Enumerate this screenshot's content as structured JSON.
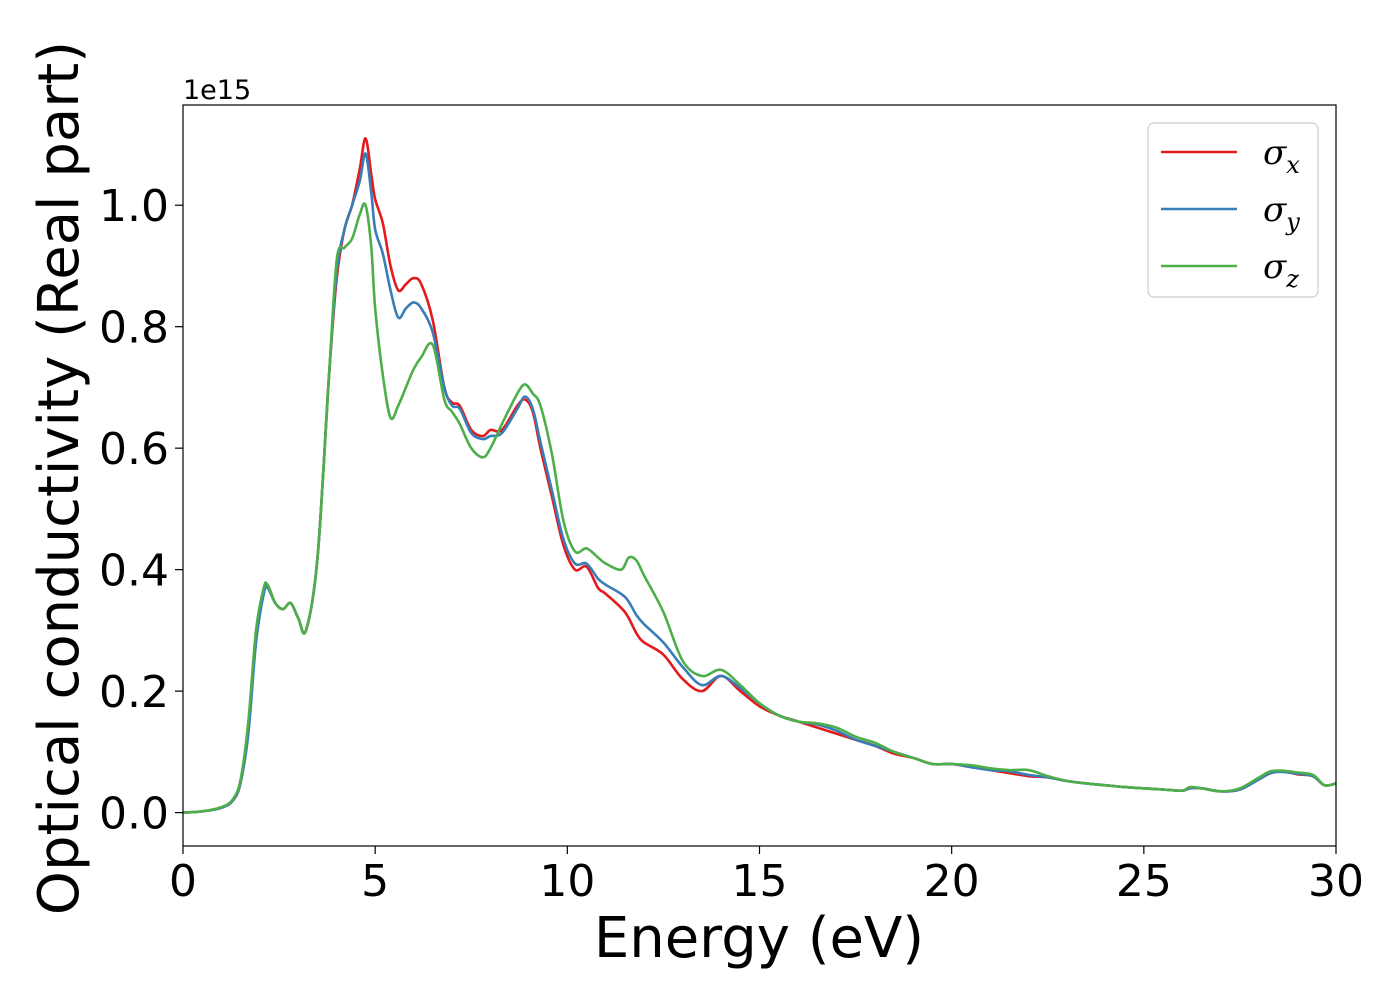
{
  "chart_data": {
    "type": "line",
    "title": "",
    "xlabel": "Energy (eV)",
    "ylabel": "Optical conductivity (Real part)",
    "y_offset_text": "1e15",
    "xlim": [
      0,
      30
    ],
    "ylim": [
      -0.055,
      1.165
    ],
    "xticks": [
      0,
      5,
      10,
      15,
      20,
      25,
      30
    ],
    "xtick_labels": [
      "0",
      "5",
      "10",
      "15",
      "20",
      "25",
      "30"
    ],
    "yticks": [
      0.0,
      0.2,
      0.4,
      0.6,
      0.8,
      1.0
    ],
    "ytick_labels": [
      "0.0",
      "0.2",
      "0.4",
      "0.6",
      "0.8",
      "1.0"
    ],
    "grid": false,
    "legend_position": "top-right",
    "series": [
      {
        "name": "σx",
        "legend_base": "σ",
        "legend_sub": "x",
        "color": "#e41a1c",
        "x": [
          0,
          0.5,
          1,
          1.3,
          1.5,
          1.7,
          1.9,
          2.1,
          2.2,
          2.4,
          2.6,
          2.8,
          3.0,
          3.2,
          3.5,
          3.8,
          4.0,
          4.2,
          4.4,
          4.6,
          4.75,
          4.9,
          5.0,
          5.2,
          5.4,
          5.6,
          5.8,
          6.0,
          6.2,
          6.5,
          6.8,
          7.0,
          7.2,
          7.5,
          7.8,
          8.0,
          8.3,
          8.7,
          8.9,
          9.1,
          9.3,
          9.6,
          9.9,
          10.2,
          10.5,
          10.8,
          11.0,
          11.5,
          11.8,
          12.0,
          12.5,
          13.0,
          13.5,
          14.0,
          14.5,
          15.0,
          15.5,
          16,
          16.5,
          17,
          17.5,
          18,
          18.5,
          19,
          19.5,
          20,
          20.5,
          21,
          21.5,
          22,
          22.5,
          23,
          23.5,
          24,
          24.5,
          25,
          25.5,
          26,
          26.2,
          26.5,
          27,
          27.5,
          28,
          28.3,
          28.6,
          29,
          29.4,
          29.7,
          30
        ],
        "y": [
          0.0,
          0.002,
          0.008,
          0.02,
          0.05,
          0.14,
          0.29,
          0.365,
          0.375,
          0.345,
          0.335,
          0.345,
          0.32,
          0.3,
          0.42,
          0.72,
          0.88,
          0.96,
          1.0,
          1.06,
          1.11,
          1.05,
          1.01,
          0.97,
          0.9,
          0.86,
          0.87,
          0.88,
          0.87,
          0.81,
          0.7,
          0.675,
          0.67,
          0.63,
          0.62,
          0.63,
          0.63,
          0.67,
          0.68,
          0.66,
          0.6,
          0.52,
          0.44,
          0.4,
          0.405,
          0.37,
          0.36,
          0.33,
          0.295,
          0.28,
          0.26,
          0.22,
          0.2,
          0.225,
          0.2,
          0.175,
          0.16,
          0.15,
          0.14,
          0.13,
          0.12,
          0.11,
          0.097,
          0.09,
          0.08,
          0.08,
          0.075,
          0.07,
          0.065,
          0.06,
          0.058,
          0.052,
          0.048,
          0.045,
          0.042,
          0.04,
          0.038,
          0.036,
          0.04,
          0.04,
          0.035,
          0.038,
          0.055,
          0.065,
          0.068,
          0.063,
          0.06,
          0.045,
          0.048
        ]
      },
      {
        "name": "σy",
        "legend_base": "σ",
        "legend_sub": "y",
        "color": "#377eb8",
        "x": [
          0,
          0.5,
          1,
          1.3,
          1.5,
          1.7,
          1.9,
          2.1,
          2.2,
          2.4,
          2.6,
          2.8,
          3.0,
          3.2,
          3.5,
          3.8,
          4.0,
          4.2,
          4.4,
          4.6,
          4.75,
          4.9,
          5.0,
          5.2,
          5.4,
          5.6,
          5.8,
          6.0,
          6.2,
          6.5,
          6.8,
          7.0,
          7.2,
          7.5,
          7.8,
          8.0,
          8.3,
          8.7,
          8.9,
          9.1,
          9.3,
          9.6,
          9.9,
          10.2,
          10.5,
          10.8,
          11.0,
          11.5,
          11.8,
          12.0,
          12.5,
          13.0,
          13.5,
          14.0,
          14.5,
          15.0,
          15.5,
          16,
          16.5,
          17,
          17.5,
          18,
          18.5,
          19,
          19.5,
          20,
          20.5,
          21,
          21.5,
          22,
          22.5,
          23,
          23.5,
          24,
          24.5,
          25,
          25.5,
          26,
          26.2,
          26.5,
          27,
          27.5,
          28,
          28.3,
          28.6,
          29,
          29.4,
          29.7,
          30
        ],
        "y": [
          0.0,
          0.002,
          0.008,
          0.02,
          0.05,
          0.13,
          0.28,
          0.36,
          0.37,
          0.345,
          0.335,
          0.345,
          0.32,
          0.3,
          0.42,
          0.72,
          0.89,
          0.96,
          1.0,
          1.04,
          1.085,
          1.02,
          0.96,
          0.92,
          0.86,
          0.815,
          0.83,
          0.84,
          0.83,
          0.79,
          0.7,
          0.67,
          0.665,
          0.625,
          0.615,
          0.62,
          0.625,
          0.665,
          0.685,
          0.665,
          0.61,
          0.53,
          0.45,
          0.41,
          0.41,
          0.385,
          0.375,
          0.355,
          0.325,
          0.31,
          0.28,
          0.24,
          0.21,
          0.225,
          0.205,
          0.18,
          0.16,
          0.15,
          0.145,
          0.135,
          0.12,
          0.11,
          0.1,
          0.09,
          0.08,
          0.08,
          0.075,
          0.07,
          0.068,
          0.062,
          0.058,
          0.052,
          0.048,
          0.045,
          0.042,
          0.04,
          0.038,
          0.036,
          0.04,
          0.04,
          0.035,
          0.038,
          0.055,
          0.065,
          0.067,
          0.064,
          0.06,
          0.045,
          0.048
        ]
      },
      {
        "name": "σz",
        "legend_base": "σ",
        "legend_sub": "z",
        "color": "#4daf4a",
        "x": [
          0,
          0.5,
          1,
          1.3,
          1.5,
          1.7,
          1.9,
          2.1,
          2.2,
          2.4,
          2.6,
          2.8,
          3.0,
          3.2,
          3.5,
          3.8,
          4.0,
          4.2,
          4.4,
          4.6,
          4.75,
          4.9,
          5.0,
          5.2,
          5.4,
          5.6,
          5.8,
          6.0,
          6.2,
          6.5,
          6.8,
          7.0,
          7.2,
          7.5,
          7.8,
          8.0,
          8.3,
          8.7,
          8.9,
          9.1,
          9.3,
          9.6,
          9.9,
          10.2,
          10.5,
          10.8,
          11.0,
          11.4,
          11.6,
          11.8,
          12.0,
          12.5,
          13.0,
          13.5,
          14.0,
          14.5,
          15.0,
          15.5,
          16,
          16.5,
          17,
          17.5,
          18,
          18.5,
          19,
          19.5,
          20,
          20.5,
          21,
          21.5,
          22,
          22.5,
          23,
          23.5,
          24,
          24.5,
          25,
          25.5,
          26,
          26.2,
          26.5,
          27,
          27.5,
          28,
          28.3,
          28.6,
          29,
          29.4,
          29.7,
          30
        ],
        "y": [
          0.0,
          0.002,
          0.009,
          0.022,
          0.055,
          0.15,
          0.3,
          0.37,
          0.375,
          0.345,
          0.335,
          0.345,
          0.32,
          0.3,
          0.42,
          0.72,
          0.91,
          0.93,
          0.945,
          0.985,
          1.0,
          0.93,
          0.83,
          0.72,
          0.65,
          0.67,
          0.7,
          0.73,
          0.75,
          0.77,
          0.68,
          0.66,
          0.64,
          0.6,
          0.585,
          0.6,
          0.64,
          0.69,
          0.705,
          0.69,
          0.67,
          0.59,
          0.48,
          0.43,
          0.435,
          0.42,
          0.41,
          0.4,
          0.42,
          0.415,
          0.39,
          0.33,
          0.25,
          0.225,
          0.235,
          0.21,
          0.18,
          0.16,
          0.15,
          0.147,
          0.14,
          0.125,
          0.115,
          0.1,
          0.09,
          0.08,
          0.08,
          0.078,
          0.073,
          0.07,
          0.07,
          0.06,
          0.052,
          0.048,
          0.045,
          0.042,
          0.04,
          0.038,
          0.036,
          0.042,
          0.04,
          0.035,
          0.04,
          0.058,
          0.068,
          0.069,
          0.066,
          0.062,
          0.045,
          0.048
        ]
      }
    ]
  }
}
